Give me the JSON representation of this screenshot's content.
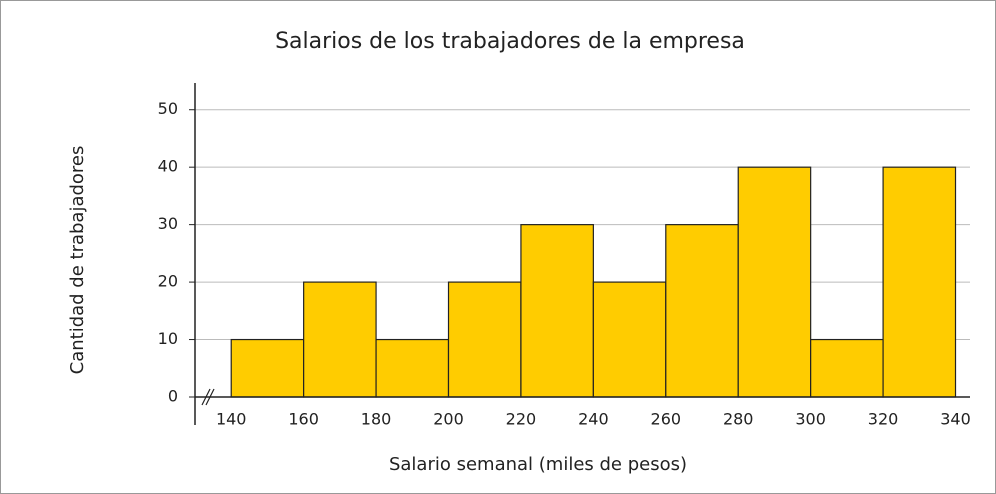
{
  "chart_data": {
    "type": "histogram",
    "title": "Salarios de los trabajadores de la empresa",
    "x_label": "Salario semanal (miles de pesos)",
    "y_label": "Cantidad de trabajadores",
    "bins": [
      140,
      160,
      180,
      200,
      220,
      240,
      260,
      280,
      300,
      320,
      340
    ],
    "values": [
      10,
      20,
      10,
      20,
      30,
      20,
      30,
      40,
      10,
      40
    ],
    "color": "#ffcc00",
    "xlim": [
      130,
      344
    ],
    "xticks": [
      140,
      160,
      180,
      200,
      220,
      240,
      260,
      280,
      300,
      320,
      340
    ],
    "ylim": [
      0,
      55
    ],
    "yticks": [
      0,
      10,
      20,
      30,
      40,
      50
    ],
    "grid": true
  }
}
